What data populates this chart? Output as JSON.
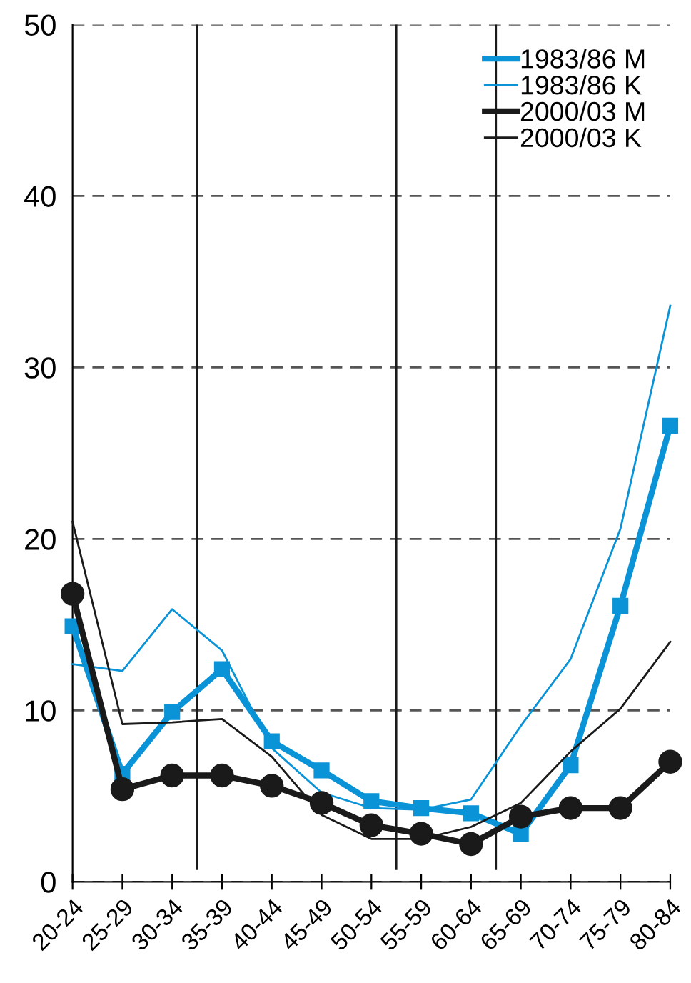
{
  "chart_data": {
    "type": "line",
    "categories": [
      "20-24",
      "25-29",
      "30-34",
      "35-39",
      "40-44",
      "45-49",
      "50-54",
      "55-59",
      "60-64",
      "65-69",
      "70-74",
      "75-79",
      "80-84"
    ],
    "series": [
      {
        "name": "1983/86 M",
        "color": "#0a93d6",
        "marker": "square",
        "values": [
          14.9,
          6.3,
          9.9,
          12.4,
          8.2,
          6.5,
          4.7,
          4.3,
          4.0,
          2.8,
          6.8,
          16.1,
          26.6
        ]
      },
      {
        "name": "1983/86 K",
        "color": "#0a93d6",
        "marker": "none",
        "values": [
          12.7,
          12.3,
          15.9,
          13.5,
          7.8,
          5.2,
          4.3,
          4.2,
          4.8,
          9.1,
          13.0,
          20.6,
          33.6
        ]
      },
      {
        "name": "2000/03 M",
        "color": "#1a1a1a",
        "marker": "circle",
        "values": [
          16.8,
          5.4,
          6.2,
          6.2,
          5.6,
          4.6,
          3.3,
          2.8,
          2.2,
          3.8,
          4.3,
          4.3,
          7.0
        ]
      },
      {
        "name": "2000/03 K",
        "color": "#1a1a1a",
        "marker": "none",
        "values": [
          21.0,
          9.2,
          9.3,
          9.5,
          7.3,
          3.9,
          2.5,
          2.5,
          3.2,
          4.6,
          7.6,
          10.1,
          14.0
        ]
      }
    ],
    "ylim": [
      0,
      50
    ],
    "yticks": [
      0,
      10,
      20,
      30,
      40,
      50
    ],
    "grid": "y",
    "legend": "top right"
  }
}
